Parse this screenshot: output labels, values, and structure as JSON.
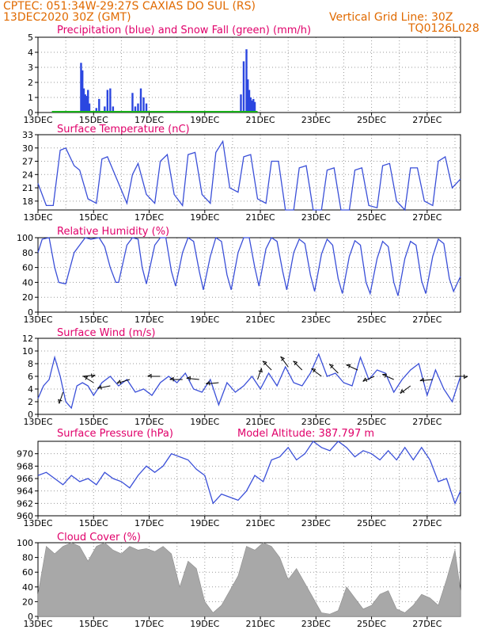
{
  "header": {
    "line1": "CPTEC:  051:34W-29:27S  CAXIAS DO SUL (RS)",
    "line2_left": "13DEC2020 30Z (GMT)",
    "line2_right": "Vertical Grid Line: 30Z",
    "code": "TQ0126L028"
  },
  "colors": {
    "header": "#e06a00",
    "title": "#e0006a",
    "line": "#3a4fd8",
    "precip": "#2b46e0",
    "snow": "#18b018",
    "cloud": "#a8a8a8",
    "grid": "#9a9a9a"
  },
  "x_tick_labels": [
    "13DEC",
    "15DEC",
    "17DEC",
    "19DEC",
    "21DEC",
    "23DEC",
    "25DEC",
    "27DEC"
  ],
  "chart_data": [
    {
      "id": "precip",
      "type": "bar",
      "title": "Precipitation (blue) and Snow Fall (green) (mm/h)",
      "ylim": [
        0,
        5
      ],
      "yticks": [
        "0",
        "1",
        "2",
        "3",
        "4",
        "5"
      ],
      "grid": true,
      "xlim_days": [
        13,
        28.2
      ],
      "x_days": [
        14.55,
        14.6,
        14.65,
        14.7,
        14.75,
        14.8,
        14.85,
        15.1,
        15.2,
        15.4,
        15.5,
        15.6,
        15.7,
        16.4,
        16.5,
        16.6,
        16.7,
        16.8,
        16.9,
        17.0,
        17.05,
        20.3,
        20.4,
        20.5,
        20.55,
        20.6,
        20.65,
        20.7,
        20.75,
        20.8
      ],
      "values": [
        3.3,
        2.8,
        1.6,
        1.2,
        1.1,
        1.5,
        0.6,
        0.3,
        0.9,
        0.4,
        1.5,
        1.6,
        0.4,
        1.3,
        0.4,
        0.6,
        1.6,
        1.0,
        0.6,
        0.1,
        0.1,
        1.2,
        3.4,
        4.2,
        2.2,
        1.5,
        1.0,
        0.8,
        0.9,
        0.7
      ],
      "snow": 0
    },
    {
      "id": "temperature",
      "type": "line",
      "title": "Surface Temperature (nC)",
      "ylim": [
        16,
        33
      ],
      "yticks": [
        "18",
        "21",
        "24",
        "27",
        "30",
        "33"
      ],
      "grid": true,
      "xlim_days": [
        13,
        28.2
      ],
      "x_days": [
        13.0,
        13.3,
        13.55,
        13.8,
        14.0,
        14.3,
        14.5,
        14.8,
        15.1,
        15.3,
        15.5,
        15.9,
        16.2,
        16.4,
        16.6,
        16.9,
        17.2,
        17.4,
        17.65,
        17.9,
        18.2,
        18.4,
        18.65,
        18.9,
        19.2,
        19.4,
        19.65,
        19.9,
        20.2,
        20.4,
        20.65,
        20.9,
        21.2,
        21.4,
        21.65,
        21.9,
        22.2,
        22.4,
        22.65,
        22.9,
        23.2,
        23.4,
        23.65,
        23.9,
        24.2,
        24.4,
        24.65,
        24.9,
        25.2,
        25.4,
        25.65,
        25.9,
        26.2,
        26.4,
        26.65,
        26.9,
        27.2,
        27.4,
        27.65,
        27.9,
        28.2
      ],
      "values": [
        22,
        17,
        17,
        29.5,
        30,
        26,
        25,
        18.5,
        17.5,
        27.5,
        28,
        22,
        17.5,
        24,
        26.5,
        19.5,
        17.5,
        27,
        28.5,
        19.5,
        17,
        28.5,
        29,
        19.5,
        17.5,
        29,
        31.5,
        21,
        20,
        28,
        28.5,
        18.5,
        17.5,
        27,
        27,
        16,
        15,
        25.5,
        26,
        16,
        15.5,
        25,
        25.5,
        15.5,
        15,
        25,
        25.5,
        17,
        16.5,
        26,
        26.5,
        18,
        15.5,
        25.5,
        25.5,
        18,
        17,
        27,
        28,
        21,
        23
      ]
    },
    {
      "id": "humidity",
      "type": "line",
      "title": "Relative Humidity (%)",
      "ylim": [
        0,
        100
      ],
      "yticks": [
        "0",
        "20",
        "40",
        "60",
        "80",
        "100"
      ],
      "grid": true,
      "xlim_days": [
        13,
        28.2
      ],
      "x_days": [
        13.0,
        13.15,
        13.4,
        13.6,
        13.75,
        14.0,
        14.3,
        14.5,
        14.7,
        14.9,
        15.2,
        15.4,
        15.6,
        15.8,
        15.9,
        16.2,
        16.4,
        16.6,
        16.75,
        16.9,
        17.2,
        17.4,
        17.6,
        17.8,
        17.95,
        18.2,
        18.4,
        18.6,
        18.8,
        18.95,
        19.2,
        19.4,
        19.6,
        19.8,
        19.95,
        20.2,
        20.4,
        20.6,
        20.8,
        20.95,
        21.2,
        21.4,
        21.6,
        21.8,
        21.95,
        22.2,
        22.4,
        22.6,
        22.8,
        22.95,
        23.2,
        23.4,
        23.6,
        23.8,
        23.95,
        24.2,
        24.4,
        24.6,
        24.8,
        24.95,
        25.2,
        25.4,
        25.6,
        25.8,
        25.95,
        26.2,
        26.4,
        26.6,
        26.8,
        26.95,
        27.2,
        27.4,
        27.6,
        27.8,
        27.95,
        28.2
      ],
      "values": [
        80,
        98,
        100,
        60,
        40,
        38,
        80,
        90,
        100,
        98,
        100,
        88,
        60,
        40,
        40,
        90,
        100,
        98,
        60,
        38,
        90,
        100,
        100,
        55,
        35,
        80,
        100,
        95,
        55,
        30,
        75,
        100,
        95,
        50,
        30,
        80,
        100,
        100,
        60,
        35,
        85,
        100,
        95,
        55,
        30,
        80,
        98,
        92,
        50,
        28,
        78,
        98,
        90,
        45,
        25,
        75,
        96,
        90,
        40,
        25,
        72,
        95,
        88,
        40,
        22,
        72,
        95,
        90,
        42,
        25,
        75,
        98,
        92,
        45,
        28,
        48
      ],
      "ylabel": ""
    },
    {
      "id": "wind",
      "type": "line",
      "title": "Surface Wind (m/s)",
      "ylim": [
        0,
        12
      ],
      "yticks": [
        "0",
        "2",
        "4",
        "6",
        "8",
        "10",
        "12"
      ],
      "grid": true,
      "xlim_days": [
        13,
        28.2
      ],
      "x_days": [
        13.0,
        13.2,
        13.4,
        13.6,
        13.8,
        14.0,
        14.2,
        14.4,
        14.6,
        14.8,
        15.0,
        15.3,
        15.6,
        15.9,
        16.2,
        16.5,
        16.8,
        17.1,
        17.4,
        17.7,
        18.0,
        18.3,
        18.6,
        18.9,
        19.2,
        19.5,
        19.8,
        20.1,
        20.4,
        20.7,
        21.0,
        21.3,
        21.6,
        21.9,
        22.2,
        22.5,
        22.8,
        23.1,
        23.4,
        23.7,
        24.0,
        24.3,
        24.6,
        24.9,
        25.2,
        25.5,
        25.8,
        26.1,
        26.4,
        26.7,
        27.0,
        27.3,
        27.6,
        27.9,
        28.2
      ],
      "values": [
        2.5,
        4.5,
        5.5,
        9,
        6,
        2,
        1,
        4.5,
        5,
        4.5,
        3,
        5,
        6,
        4.5,
        5.5,
        3.5,
        4,
        3,
        5,
        6,
        5,
        6.5,
        4,
        3.5,
        5.5,
        1.5,
        5,
        3.5,
        4.5,
        6,
        4,
        6.5,
        4.5,
        7.5,
        5,
        4.5,
        6.5,
        9.5,
        6,
        6.5,
        5,
        4.5,
        9,
        5.5,
        7,
        6.5,
        3.5,
        5.5,
        7,
        8,
        3,
        7,
        4,
        2,
        6
      ],
      "arrows": [
        {
          "day": 13.9,
          "speed": 3.5,
          "dx": -0.3,
          "dy": 0.9
        },
        {
          "day": 14.6,
          "speed": 6,
          "dx": 1,
          "dy": -0.1
        },
        {
          "day": 15.0,
          "speed": 5,
          "dx": -0.8,
          "dy": -0.5
        },
        {
          "day": 15.6,
          "speed": 4.5,
          "dx": -1,
          "dy": 0.2
        },
        {
          "day": 16.3,
          "speed": 5.5,
          "dx": -1,
          "dy": 0.3
        },
        {
          "day": 17.4,
          "speed": 6,
          "dx": -1,
          "dy": 0
        },
        {
          "day": 18.2,
          "speed": 5.5,
          "dx": -1,
          "dy": 0
        },
        {
          "day": 18.8,
          "speed": 5.5,
          "dx": -1,
          "dy": -0.1
        },
        {
          "day": 19.5,
          "speed": 5,
          "dx": -1,
          "dy": 0.1
        },
        {
          "day": 20.9,
          "speed": 5.5,
          "dx": 0.3,
          "dy": -0.9
        },
        {
          "day": 21.4,
          "speed": 7,
          "dx": -0.7,
          "dy": -0.7
        },
        {
          "day": 22.0,
          "speed": 7.5,
          "dx": -0.6,
          "dy": -0.8
        },
        {
          "day": 22.5,
          "speed": 7,
          "dx": -0.7,
          "dy": -0.7
        },
        {
          "day": 23.2,
          "speed": 6,
          "dx": -0.8,
          "dy": -0.6
        },
        {
          "day": 23.8,
          "speed": 6.5,
          "dx": -0.7,
          "dy": -0.7
        },
        {
          "day": 24.5,
          "speed": 7,
          "dx": -0.9,
          "dy": -0.4
        },
        {
          "day": 25.1,
          "speed": 6,
          "dx": -0.9,
          "dy": 0.4
        },
        {
          "day": 25.8,
          "speed": 5.5,
          "dx": -0.9,
          "dy": -0.4
        },
        {
          "day": 26.4,
          "speed": 4.5,
          "dx": -0.8,
          "dy": 0.6
        },
        {
          "day": 27.2,
          "speed": 5.5,
          "dx": -1,
          "dy": 0.1
        },
        {
          "day": 28.0,
          "speed": 6,
          "dx": 1,
          "dy": 0
        }
      ]
    },
    {
      "id": "pressure",
      "type": "line",
      "title": "Surface Pressure (hPa)",
      "annotation": "Model Altitude: 387.797 m",
      "ylim": [
        960,
        972
      ],
      "yticks": [
        "960",
        "962",
        "964",
        "966",
        "968",
        "970"
      ],
      "grid": true,
      "xlim_days": [
        13,
        28.2
      ],
      "x_days": [
        13.0,
        13.3,
        13.6,
        13.9,
        14.2,
        14.5,
        14.8,
        15.1,
        15.4,
        15.7,
        16.0,
        16.3,
        16.6,
        16.9,
        17.2,
        17.5,
        17.8,
        18.1,
        18.4,
        18.7,
        19.0,
        19.3,
        19.6,
        19.9,
        20.2,
        20.5,
        20.8,
        21.1,
        21.4,
        21.7,
        22.0,
        22.3,
        22.6,
        22.9,
        23.2,
        23.5,
        23.8,
        24.1,
        24.4,
        24.7,
        25.0,
        25.3,
        25.6,
        25.9,
        26.2,
        26.5,
        26.8,
        27.1,
        27.4,
        27.7,
        28.0,
        28.2
      ],
      "values": [
        966.5,
        967,
        966,
        965,
        966.5,
        965.5,
        966,
        965,
        967,
        966,
        965.5,
        964.5,
        966.5,
        968,
        967,
        968,
        970,
        969.5,
        969,
        967.5,
        966.5,
        962,
        963.5,
        963,
        962.5,
        964,
        966.5,
        965.5,
        969,
        969.5,
        971,
        969,
        970,
        972,
        971,
        970.5,
        972.5,
        971,
        969.5,
        970.5,
        970,
        969,
        970.5,
        969,
        971,
        969,
        971,
        969,
        965.5,
        966,
        962,
        964
      ]
    },
    {
      "id": "cloud",
      "type": "area",
      "title": "Cloud Cover (%)",
      "ylim": [
        0,
        100
      ],
      "yticks": [
        "0",
        "20",
        "40",
        "60",
        "80",
        "100"
      ],
      "grid": true,
      "xlim_days": [
        13,
        28.2
      ],
      "x_days": [
        13.0,
        13.3,
        13.6,
        13.9,
        14.2,
        14.5,
        14.8,
        15.1,
        15.4,
        15.7,
        16.0,
        16.3,
        16.6,
        16.9,
        17.2,
        17.5,
        17.8,
        18.1,
        18.4,
        18.7,
        19.0,
        19.3,
        19.6,
        19.9,
        20.2,
        20.5,
        20.8,
        21.1,
        21.4,
        21.7,
        22.0,
        22.3,
        22.6,
        22.9,
        23.2,
        23.5,
        23.8,
        24.1,
        24.4,
        24.7,
        25.0,
        25.3,
        25.6,
        25.9,
        26.2,
        26.5,
        26.8,
        27.1,
        27.4,
        27.7,
        28.0,
        28.2
      ],
      "values": [
        30,
        95,
        85,
        95,
        100,
        95,
        75,
        95,
        100,
        90,
        85,
        95,
        90,
        92,
        88,
        95,
        85,
        40,
        75,
        65,
        20,
        5,
        15,
        35,
        55,
        95,
        90,
        100,
        95,
        80,
        50,
        65,
        45,
        25,
        5,
        3,
        8,
        40,
        25,
        10,
        15,
        30,
        35,
        10,
        5,
        15,
        30,
        25,
        15,
        50,
        90,
        35
      ]
    }
  ]
}
